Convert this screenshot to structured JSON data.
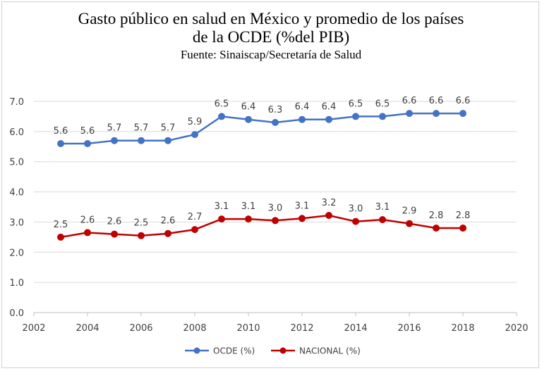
{
  "chart_data": {
    "type": "line",
    "title_line1": "Gasto público en salud en México y promedio de los países",
    "title_line2": "de la OCDE (%del PIB)",
    "subtitle": "Fuente: Sinaiscap/Secretaría de Salud",
    "xlabel": "",
    "ylabel": "",
    "xlim": [
      2002,
      2020
    ],
    "ylim": [
      0,
      7
    ],
    "xticks": [
      2002,
      2004,
      2006,
      2008,
      2010,
      2012,
      2014,
      2016,
      2018,
      2020
    ],
    "yticks": [
      0,
      1,
      2,
      3,
      4,
      5,
      6,
      7
    ],
    "grid": "horizontal",
    "legend_position": "bottom",
    "x": [
      2003,
      2004,
      2005,
      2006,
      2007,
      2008,
      2009,
      2010,
      2011,
      2012,
      2013,
      2014,
      2015,
      2016,
      2017,
      2018
    ],
    "series": [
      {
        "name": "OCDE (%)",
        "color": "#4472C4",
        "values": [
          5.6,
          5.6,
          5.7,
          5.7,
          5.7,
          5.9,
          6.5,
          6.4,
          6.3,
          6.4,
          6.4,
          6.5,
          6.5,
          6.6,
          6.6,
          6.6
        ],
        "labels": [
          "5.6",
          "5.6",
          "5.7",
          "5.7",
          "5.7",
          "5.9",
          "6.5",
          "6.4",
          "6.3",
          "6.4",
          "6.4",
          "6.5",
          "6.5",
          "6.6",
          "6.6",
          "6.6"
        ]
      },
      {
        "name": "NACIONAL (%)",
        "color": "#C00000",
        "values": [
          2.5,
          2.65,
          2.6,
          2.55,
          2.62,
          2.75,
          3.1,
          3.1,
          3.05,
          3.12,
          3.22,
          3.02,
          3.08,
          2.95,
          2.8,
          2.8
        ],
        "labels": [
          "2.5",
          "2.6",
          "2.6",
          "2.5",
          "2.6",
          "2.7",
          "3.1",
          "3.1",
          "3.0",
          "3.1",
          "3.2",
          "3.0",
          "3.1",
          "2.9",
          "2.8",
          "2.8"
        ]
      }
    ]
  }
}
